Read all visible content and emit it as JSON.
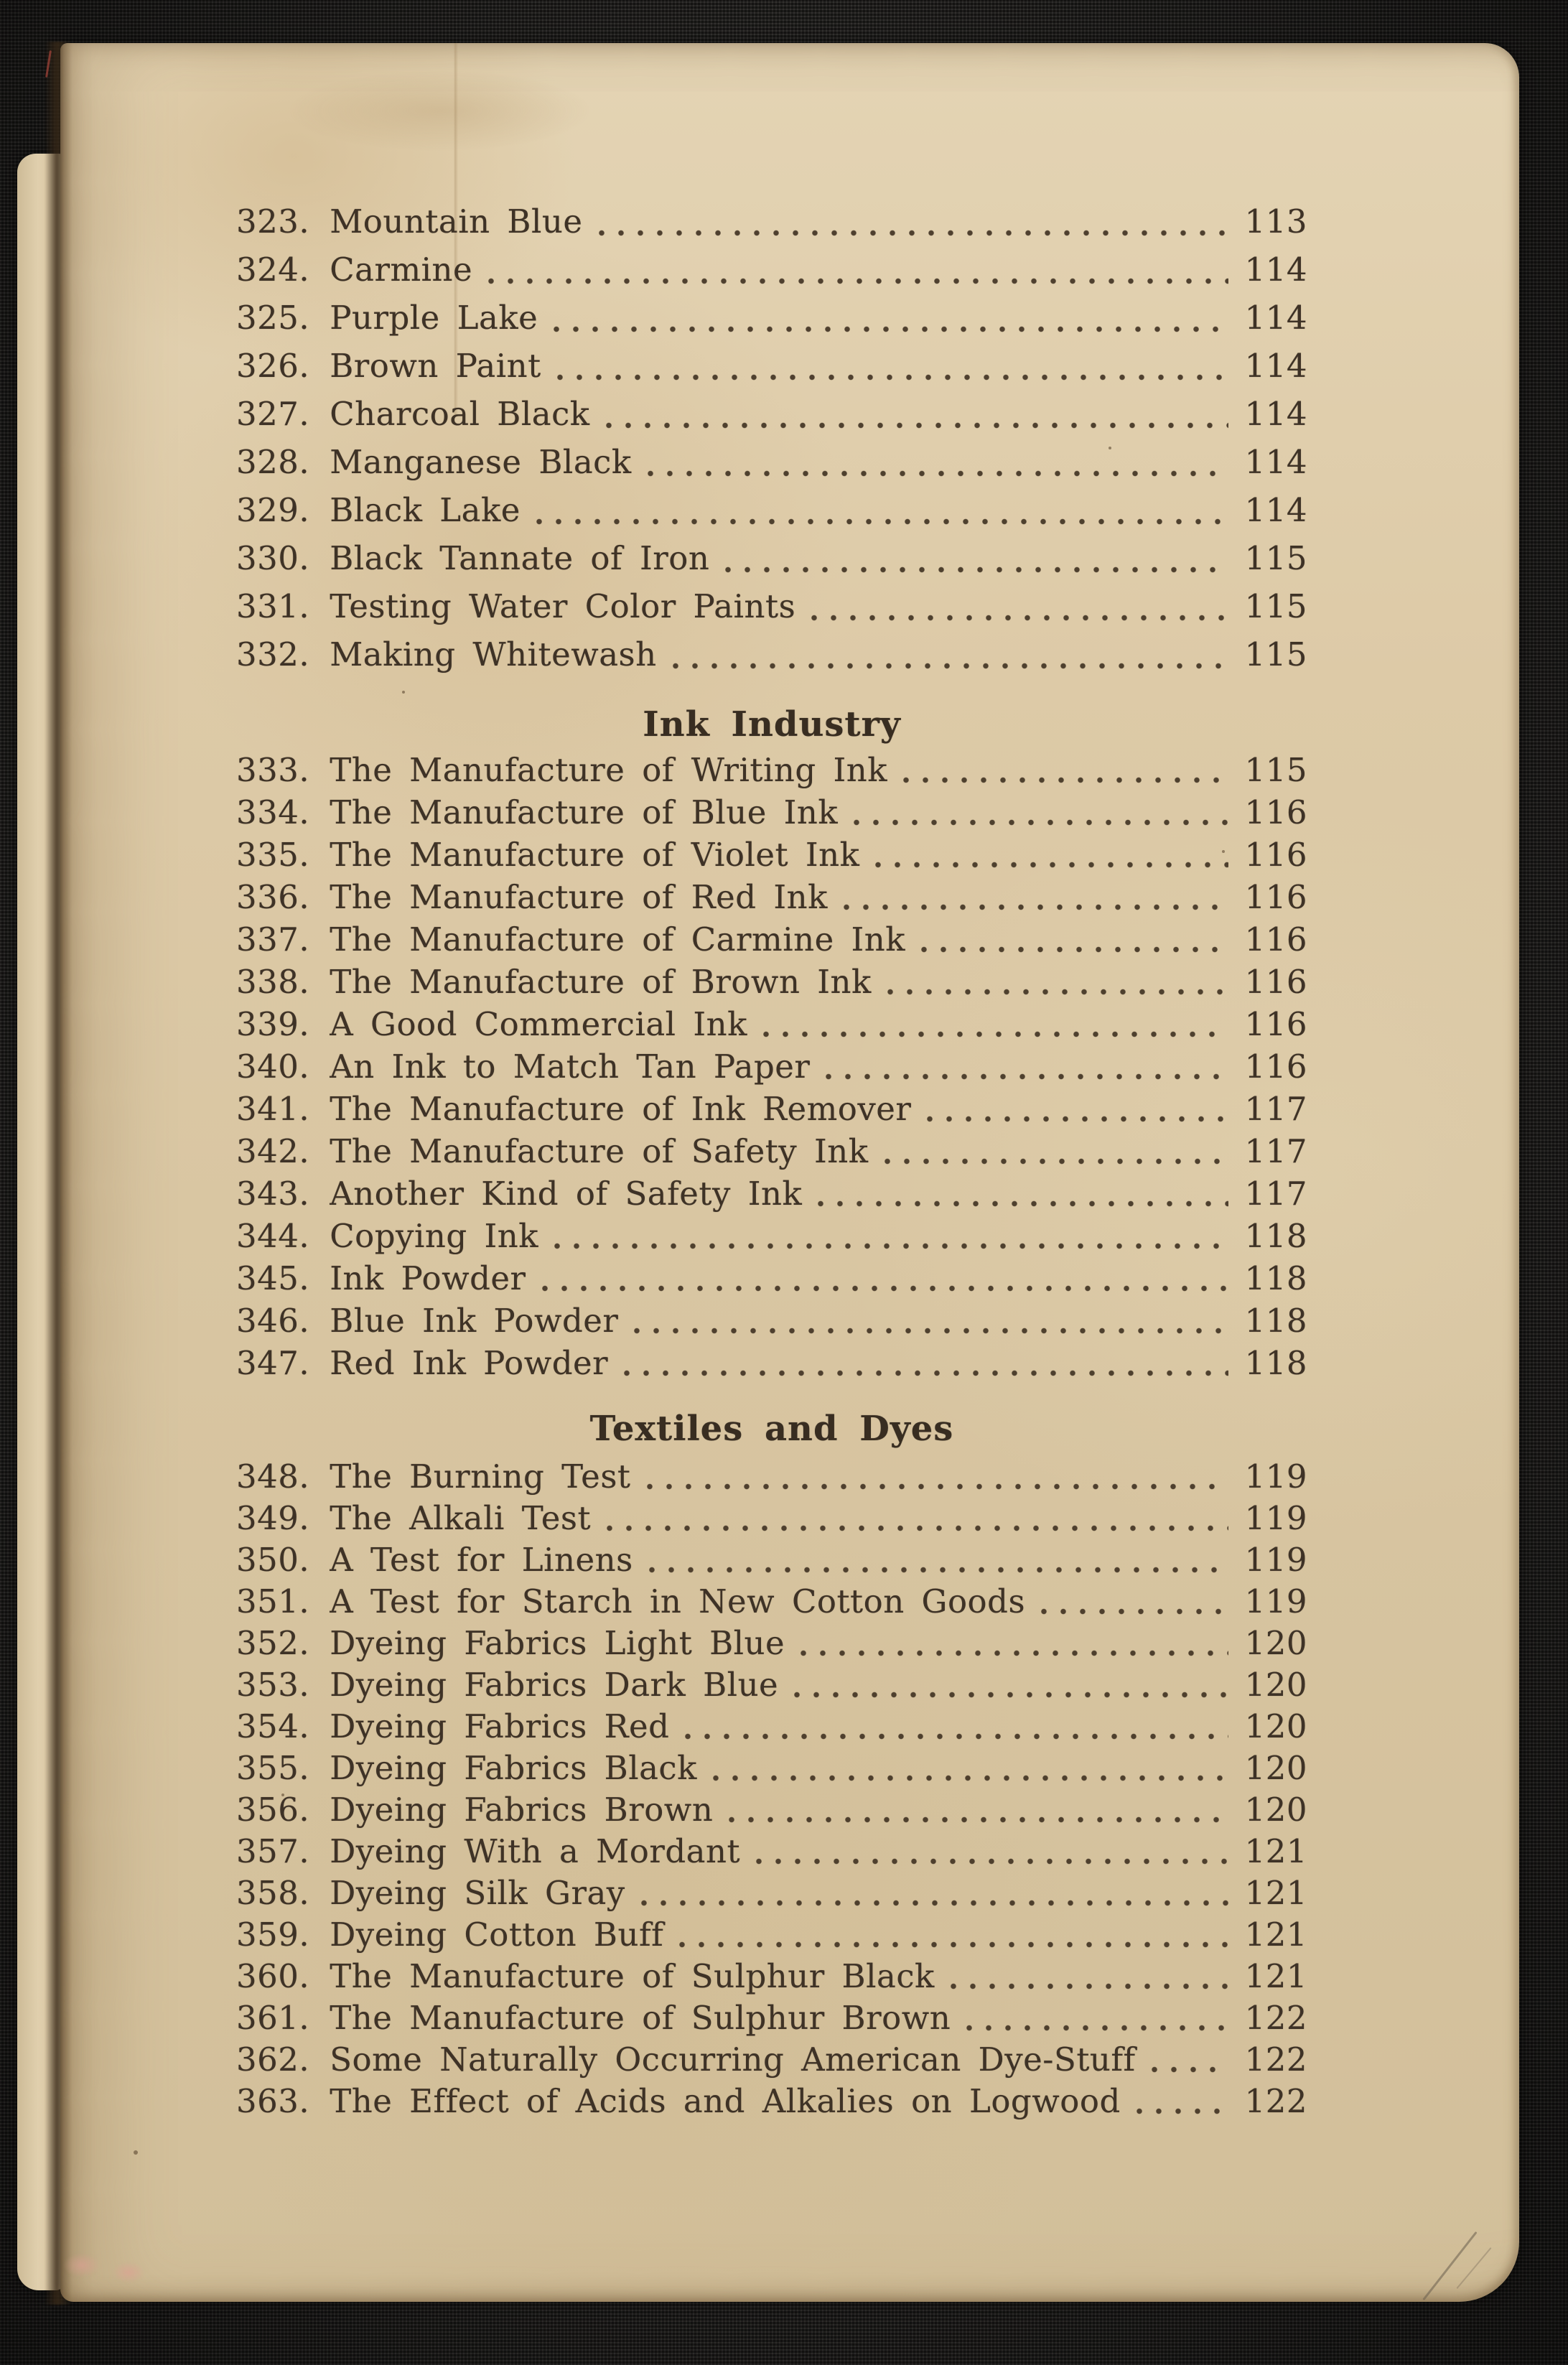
{
  "document": {
    "kind": "scanned book page — table of contents (continuation)",
    "colors": {
      "paper": "#dbc8a4",
      "ink": "#3e3226",
      "cloth_background": "#23211f",
      "gutter_shadow": "#6b5337"
    },
    "sections": [
      {
        "heading": null,
        "entries": [
          {
            "num": "323.",
            "title": "Mountain Blue",
            "page": "113"
          },
          {
            "num": "324.",
            "title": "Carmine",
            "page": "114"
          },
          {
            "num": "325.",
            "title": "Purple Lake",
            "page": "114"
          },
          {
            "num": "326.",
            "title": "Brown Paint",
            "page": "114"
          },
          {
            "num": "327.",
            "title": "Charcoal Black",
            "page": "114"
          },
          {
            "num": "328.",
            "title": "Manganese Black",
            "page": "114"
          },
          {
            "num": "329.",
            "title": "Black Lake",
            "page": "114"
          },
          {
            "num": "330.",
            "title": "Black Tannate of Iron",
            "page": "115"
          },
          {
            "num": "331.",
            "title": "Testing Water Color Paints",
            "page": "115"
          },
          {
            "num": "332.",
            "title": "Making Whitewash",
            "page": "115"
          }
        ]
      },
      {
        "heading": "Ink Industry",
        "entries": [
          {
            "num": "333.",
            "title": "The Manufacture of Writing Ink",
            "page": "115"
          },
          {
            "num": "334.",
            "title": "The Manufacture of Blue Ink",
            "page": "116"
          },
          {
            "num": "335.",
            "title": "The Manufacture of Violet Ink",
            "page": "116"
          },
          {
            "num": "336.",
            "title": "The Manufacture of Red Ink",
            "page": "116"
          },
          {
            "num": "337.",
            "title": "The Manufacture of Carmine Ink",
            "page": "116"
          },
          {
            "num": "338.",
            "title": "The Manufacture of Brown Ink",
            "page": "116"
          },
          {
            "num": "339.",
            "title": "A Good Commercial Ink",
            "page": "116"
          },
          {
            "num": "340.",
            "title": "An Ink to Match Tan Paper",
            "page": "116"
          },
          {
            "num": "341.",
            "title": "The Manufacture of Ink Remover",
            "page": "117"
          },
          {
            "num": "342.",
            "title": "The Manufacture of Safety Ink",
            "page": "117"
          },
          {
            "num": "343.",
            "title": "Another Kind of Safety Ink",
            "page": "117"
          },
          {
            "num": "344.",
            "title": "Copying Ink",
            "page": "118"
          },
          {
            "num": "345.",
            "title": "Ink Powder",
            "page": "118"
          },
          {
            "num": "346.",
            "title": "Blue Ink Powder",
            "page": "118"
          },
          {
            "num": "347.",
            "title": "Red Ink Powder",
            "page": "118"
          }
        ]
      },
      {
        "heading": "Textiles and Dyes",
        "entries": [
          {
            "num": "348.",
            "title": "The Burning Test",
            "page": "119"
          },
          {
            "num": "349.",
            "title": "The Alkali Test",
            "page": "119"
          },
          {
            "num": "350.",
            "title": "A Test for Linens",
            "page": "119"
          },
          {
            "num": "351.",
            "title": "A Test for Starch in New Cotton Goods",
            "page": "119"
          },
          {
            "num": "352.",
            "title": "Dyeing Fabrics Light Blue",
            "page": "120"
          },
          {
            "num": "353.",
            "title": "Dyeing Fabrics Dark Blue",
            "page": "120"
          },
          {
            "num": "354.",
            "title": "Dyeing Fabrics Red",
            "page": "120"
          },
          {
            "num": "355.",
            "title": "Dyeing Fabrics Black",
            "page": "120"
          },
          {
            "num": "356.",
            "title": "Dyeing Fabrics Brown",
            "page": "120"
          },
          {
            "num": "357.",
            "title": "Dyeing With a Mordant",
            "page": "121"
          },
          {
            "num": "358.",
            "title": "Dyeing Silk Gray",
            "page": "121"
          },
          {
            "num": "359.",
            "title": "Dyeing Cotton Buff",
            "page": "121"
          },
          {
            "num": "360.",
            "title": "The Manufacture of Sulphur Black",
            "page": "121"
          },
          {
            "num": "361.",
            "title": "The Manufacture of Sulphur Brown",
            "page": "122"
          },
          {
            "num": "362.",
            "title": "Some Naturally Occurring American Dye-Stuff",
            "page": "122"
          },
          {
            "num": "363.",
            "title": "The Effect of Acids and Alkalies on Logwood",
            "page": "122"
          }
        ]
      }
    ]
  }
}
